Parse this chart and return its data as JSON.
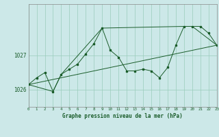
{
  "title": "Graphe pression niveau de la mer (hPa)",
  "bg_color": "#cce8e8",
  "grid_color": "#99ccbb",
  "line_color": "#1a5c2a",
  "marker_color": "#1a5c2a",
  "x_min": 0,
  "x_max": 23,
  "y_min": 1025.5,
  "y_max": 1028.5,
  "ytick_positions": [
    1026,
    1027
  ],
  "series1": [
    [
      0,
      1026.15
    ],
    [
      1,
      1026.35
    ],
    [
      2,
      1026.5
    ],
    [
      3,
      1025.95
    ],
    [
      4,
      1026.45
    ],
    [
      5,
      1026.6
    ],
    [
      6,
      1026.75
    ],
    [
      7,
      1027.05
    ],
    [
      8,
      1027.35
    ],
    [
      9,
      1027.8
    ],
    [
      10,
      1027.15
    ],
    [
      11,
      1026.95
    ],
    [
      12,
      1026.55
    ],
    [
      13,
      1026.55
    ],
    [
      14,
      1026.6
    ],
    [
      15,
      1026.55
    ],
    [
      16,
      1026.35
    ],
    [
      17,
      1026.65
    ],
    [
      18,
      1027.3
    ],
    [
      19,
      1027.85
    ],
    [
      20,
      1027.85
    ],
    [
      21,
      1027.85
    ],
    [
      22,
      1027.65
    ],
    [
      23,
      1027.3
    ]
  ],
  "series2": [
    [
      0,
      1026.15
    ],
    [
      3,
      1025.95
    ],
    [
      4,
      1026.45
    ],
    [
      9,
      1027.8
    ],
    [
      19,
      1027.85
    ],
    [
      20,
      1027.85
    ],
    [
      23,
      1027.3
    ]
  ],
  "series3": [
    [
      0,
      1026.15
    ],
    [
      23,
      1027.3
    ]
  ]
}
